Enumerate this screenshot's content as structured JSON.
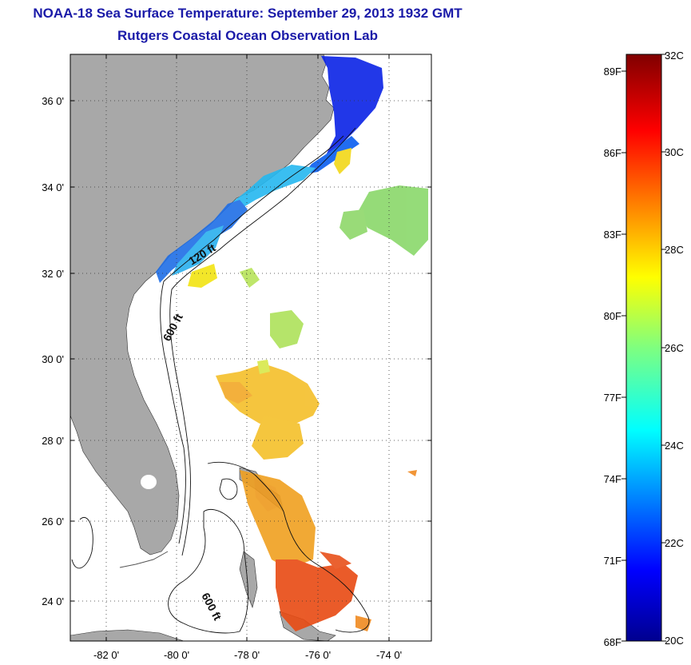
{
  "header": {
    "title": "NOAA-18 Sea Surface Temperature:  September 29, 2013 1932 GMT",
    "subtitle": "Rutgers Coastal Ocean Observation Lab"
  },
  "map": {
    "lat_labels": [
      "24 0'",
      "26 0'",
      "28 0'",
      "30 0'",
      "32 0'",
      "34 0'",
      "36 0'"
    ],
    "lon_labels": [
      "-82 0'",
      "-80 0'",
      "-78 0'",
      "-76 0'",
      "-74 0'"
    ],
    "contour_labels": [
      "120 ft",
      "600 ft",
      "600 ft"
    ],
    "colors": {
      "land": "#a8a8a8",
      "ocean": "#ffffff"
    }
  },
  "colorbar": {
    "fahrenheit_labels": [
      "89F",
      "86F",
      "83F",
      "80F",
      "77F",
      "74F",
      "71F",
      "68F"
    ],
    "celsius_labels": [
      "32C",
      "30C",
      "28C",
      "26C",
      "24C",
      "22C",
      "20C"
    ],
    "celsius_range": [
      20,
      32
    ]
  }
}
